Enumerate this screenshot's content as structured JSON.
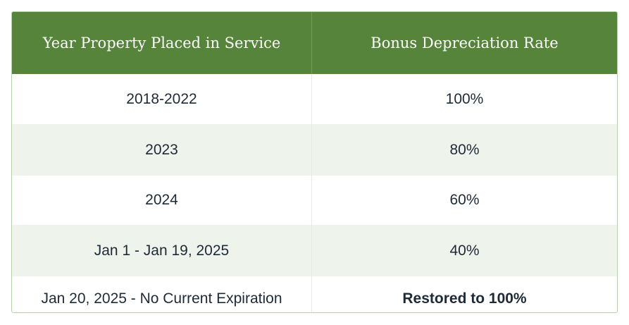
{
  "table": {
    "columns": [
      "Year Property Placed in Service",
      "Bonus Depreciation Rate"
    ],
    "rows": [
      [
        "2018-2022",
        "100%"
      ],
      [
        "2023",
        "80%"
      ],
      [
        "2024",
        "60%"
      ],
      [
        "Jan 1 - Jan 19, 2025",
        "40%"
      ],
      [
        "Jan 20, 2025 - No Current Expiration",
        "Restored to 100%"
      ]
    ]
  }
}
